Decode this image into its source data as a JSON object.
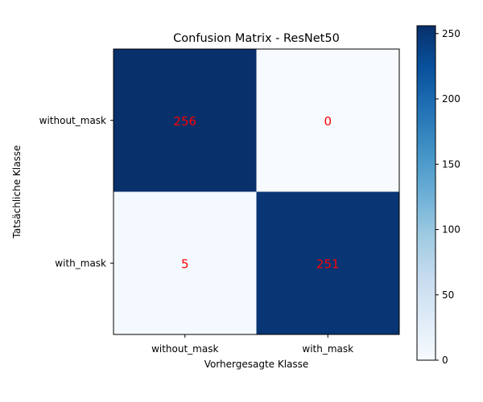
{
  "chart_data": {
    "type": "heatmap",
    "title": "Confusion Matrix - ResNet50",
    "xlabel": "Vorhergesagte Klasse",
    "ylabel": "Tatsächliche Klasse",
    "x_categories": [
      "without_mask",
      "with_mask"
    ],
    "y_categories": [
      "without_mask",
      "with_mask"
    ],
    "values": [
      [
        256,
        0
      ],
      [
        5,
        251
      ]
    ],
    "colormap": "Blues",
    "color_range": [
      0,
      256
    ],
    "colorbar_ticks": [
      0,
      50,
      100,
      150,
      200,
      250
    ],
    "annotation_color": "#ff0000",
    "grid": false
  }
}
